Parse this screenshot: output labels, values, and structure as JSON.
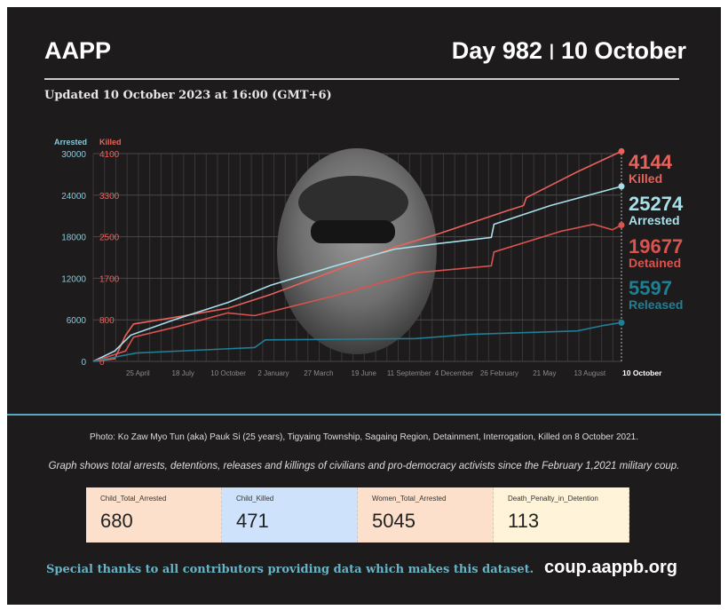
{
  "header": {
    "brand": "AAPP",
    "day": "Day 982",
    "separator": "|",
    "date": "10 October",
    "updated": "Updated 10 October 2023 at 16:00 (GMT+6)"
  },
  "chart_data": {
    "type": "line",
    "title": "",
    "axis_left_arrested": {
      "label": "Arrested",
      "ticks": [
        0,
        6000,
        12000,
        18000,
        24000,
        30000
      ],
      "range": [
        0,
        30000
      ]
    },
    "axis_left_killed": {
      "label": "Killed",
      "ticks": [
        0,
        800,
        1700,
        2500,
        3300,
        4100
      ]
    },
    "x_unit": "days since 1 February 2021",
    "x_range": [
      0,
      982
    ],
    "x_ticks": [
      {
        "day": 83,
        "label": "25 April"
      },
      {
        "day": 167,
        "label": "18 July"
      },
      {
        "day": 251,
        "label": "10 October"
      },
      {
        "day": 335,
        "label": "2 January"
      },
      {
        "day": 419,
        "label": "27 March"
      },
      {
        "day": 503,
        "label": "19 June"
      },
      {
        "day": 587,
        "label": "11 September"
      },
      {
        "day": 671,
        "label": "4 December"
      },
      {
        "day": 755,
        "label": "26 February"
      },
      {
        "day": 839,
        "label": "21 May"
      },
      {
        "day": 923,
        "label": "13 August"
      },
      {
        "day": 982,
        "label": "10 October"
      }
    ],
    "grid": true,
    "series": [
      {
        "name": "Killed",
        "axis": "killed",
        "color": "#e8625c",
        "final": "4144",
        "points": [
          [
            0,
            0
          ],
          [
            40,
            50
          ],
          [
            60,
            500
          ],
          [
            75,
            720
          ],
          [
            150,
            850
          ],
          [
            250,
            1050
          ],
          [
            330,
            1350
          ],
          [
            450,
            1850
          ],
          [
            560,
            2300
          ],
          [
            640,
            2550
          ],
          [
            770,
            3000
          ],
          [
            800,
            3100
          ],
          [
            805,
            3250
          ],
          [
            900,
            3750
          ],
          [
            982,
            4144
          ]
        ]
      },
      {
        "name": "Arrested",
        "axis": "arrested",
        "color": "#a8e0ea",
        "final": "25274",
        "points": [
          [
            0,
            0
          ],
          [
            40,
            1500
          ],
          [
            70,
            3800
          ],
          [
            150,
            6000
          ],
          [
            250,
            8500
          ],
          [
            330,
            11000
          ],
          [
            450,
            13800
          ],
          [
            560,
            16200
          ],
          [
            640,
            17000
          ],
          [
            740,
            17900
          ],
          [
            745,
            19800
          ],
          [
            850,
            22500
          ],
          [
            950,
            24600
          ],
          [
            982,
            25274
          ]
        ]
      },
      {
        "name": "Detained",
        "axis": "arrested",
        "color": "#d9534f",
        "final": "19677",
        "points": [
          [
            0,
            0
          ],
          [
            60,
            1500
          ],
          [
            75,
            3500
          ],
          [
            150,
            4900
          ],
          [
            250,
            7000
          ],
          [
            300,
            6600
          ],
          [
            450,
            9500
          ],
          [
            600,
            12800
          ],
          [
            740,
            13800
          ],
          [
            745,
            15800
          ],
          [
            870,
            18800
          ],
          [
            930,
            19800
          ],
          [
            965,
            19000
          ],
          [
            982,
            19677
          ]
        ]
      },
      {
        "name": "Released",
        "axis": "arrested",
        "color": "#1f7f95",
        "final": "5597",
        "points": [
          [
            0,
            0
          ],
          [
            80,
            1200
          ],
          [
            300,
            2000
          ],
          [
            320,
            3100
          ],
          [
            600,
            3300
          ],
          [
            700,
            3900
          ],
          [
            900,
            4400
          ],
          [
            950,
            5200
          ],
          [
            982,
            5597
          ]
        ]
      }
    ]
  },
  "captions": {
    "photo": "Photo: Ko Zaw Myo Tun (aka) Pauk Si (25 years), Tigyaing Township, Sagaing Region, Detainment, Interrogation, Killed on 8 October 2021.",
    "graph": "Graph shows total arrests, detentions, releases and killings of civilians and pro-democracy activists since the February 1,2021 military coup."
  },
  "cards": [
    {
      "label": "Child_Total_Arrested",
      "value": "680",
      "color": "#fde0cc"
    },
    {
      "label": "Child_Killed",
      "value": "471",
      "color": "#cfe2fb"
    },
    {
      "label": "Women_Total_Arrested",
      "value": "5045",
      "color": "#fde0cc"
    },
    {
      "label": "Death_Penalty_in_Detention",
      "value": "113",
      "color": "#fff3da"
    }
  ],
  "footer": {
    "thanks": "Special thanks to all contributors providing data which makes this dataset.",
    "site": "coup.aappb.org"
  }
}
